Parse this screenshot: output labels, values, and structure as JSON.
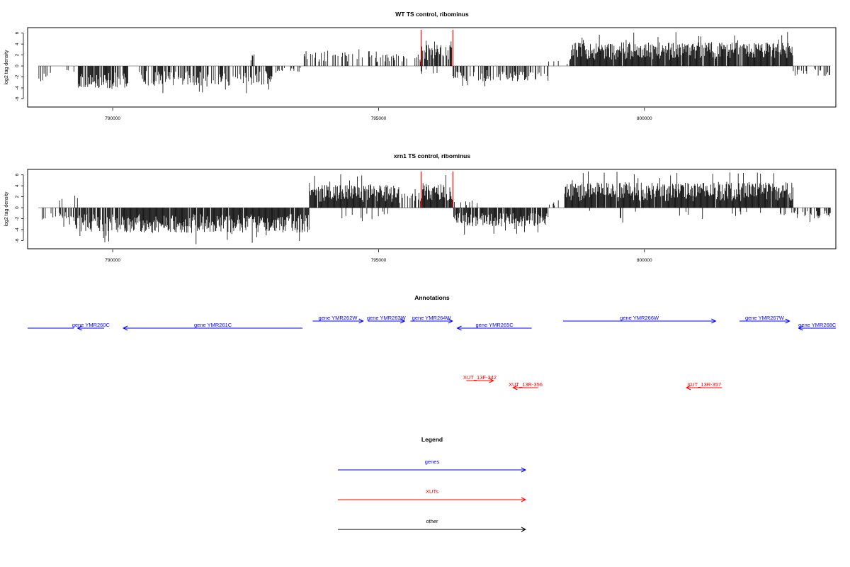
{
  "chart_data": [
    {
      "type": "bar",
      "title": "WT TS control, ribominus",
      "ylabel": "log2 tag density",
      "xlim": [
        788400,
        803600
      ],
      "ylim": [
        -7.5,
        7.0
      ],
      "xticks": [
        790000,
        795000,
        800000
      ],
      "yticks": [
        -6,
        -4,
        -2,
        0,
        2,
        4,
        6
      ],
      "highlight_color": "#ff0000",
      "highlights": [
        795800,
        796400
      ],
      "baseline": [
        788600,
        803500
      ],
      "segments": [
        {
          "from": 788600,
          "to": 788850,
          "sign": -1,
          "amp": 3.0,
          "density": 0.35
        },
        {
          "from": 788850,
          "to": 789350,
          "sign": -1,
          "amp": 1.5,
          "density": 0.05
        },
        {
          "from": 789350,
          "to": 790300,
          "sign": -1,
          "amp": 4.2,
          "density": 0.75
        },
        {
          "from": 790500,
          "to": 793000,
          "sign": -1,
          "amp": 3.6,
          "density": 0.6
        },
        {
          "from": 793000,
          "to": 793650,
          "sign": -1,
          "amp": 1.2,
          "density": 0.15
        },
        {
          "from": 792600,
          "to": 792700,
          "sign": 1,
          "amp": 2.5,
          "density": 0.3
        },
        {
          "from": 793600,
          "to": 795000,
          "sign": 1,
          "amp": 2.8,
          "density": 0.4
        },
        {
          "from": 795000,
          "to": 795800,
          "sign": 1,
          "amp": 2.2,
          "density": 0.3
        },
        {
          "from": 795800,
          "to": 796400,
          "sign": 1,
          "amp": 4.0,
          "density": 0.75
        },
        {
          "from": 795800,
          "to": 796400,
          "sign": -1,
          "amp": 1.5,
          "density": 0.05
        },
        {
          "from": 796400,
          "to": 798200,
          "sign": -1,
          "amp": 2.8,
          "density": 0.45
        },
        {
          "from": 798200,
          "to": 798600,
          "sign": 1,
          "amp": 1.0,
          "density": 0.08
        },
        {
          "from": 798600,
          "to": 802800,
          "sign": 1,
          "amp": 4.3,
          "density": 0.95
        },
        {
          "from": 802800,
          "to": 803500,
          "sign": -1,
          "amp": 1.8,
          "density": 0.3
        }
      ]
    },
    {
      "type": "bar",
      "title": "xrn1 TS control, ribominus",
      "ylabel": "log2 tag density",
      "xlim": [
        788400,
        803600
      ],
      "ylim": [
        -7.5,
        7.0
      ],
      "xticks": [
        790000,
        795000,
        800000
      ],
      "yticks": [
        -6,
        -4,
        -2,
        0,
        2,
        4,
        6
      ],
      "highlight_color": "#ff0000",
      "highlights": [
        795800,
        796400
      ],
      "baseline": [
        788600,
        803500
      ],
      "segments": [
        {
          "from": 788600,
          "to": 789300,
          "sign": -1,
          "amp": 2.5,
          "density": 0.35
        },
        {
          "from": 789000,
          "to": 789350,
          "sign": 1,
          "amp": 2.2,
          "density": 0.2
        },
        {
          "from": 789300,
          "to": 790200,
          "sign": -1,
          "amp": 4.5,
          "density": 0.8
        },
        {
          "from": 790200,
          "to": 793700,
          "sign": -1,
          "amp": 4.6,
          "density": 0.95
        },
        {
          "from": 793700,
          "to": 795400,
          "sign": 1,
          "amp": 4.2,
          "density": 0.95
        },
        {
          "from": 794300,
          "to": 795200,
          "sign": -1,
          "amp": 2.0,
          "density": 0.15
        },
        {
          "from": 795400,
          "to": 795800,
          "sign": 1,
          "amp": 3.0,
          "density": 0.5
        },
        {
          "from": 795800,
          "to": 796400,
          "sign": 1,
          "amp": 4.5,
          "density": 0.95
        },
        {
          "from": 796400,
          "to": 798200,
          "sign": -1,
          "amp": 3.4,
          "density": 0.9
        },
        {
          "from": 796400,
          "to": 797000,
          "sign": 1,
          "amp": 1.5,
          "density": 0.15
        },
        {
          "from": 798200,
          "to": 798500,
          "sign": 1,
          "amp": 1.0,
          "density": 0.1
        },
        {
          "from": 798500,
          "to": 802800,
          "sign": 1,
          "amp": 4.6,
          "density": 0.98
        },
        {
          "from": 798500,
          "to": 802800,
          "sign": -1,
          "amp": 2.0,
          "density": 0.07
        },
        {
          "from": 802800,
          "to": 803500,
          "sign": -1,
          "amp": 2.0,
          "density": 0.45
        }
      ]
    }
  ],
  "annotations": {
    "title": "Annotations",
    "blue": "#0000ff",
    "red": "#ff0000",
    "genes": [
      {
        "label": "",
        "from": 788400,
        "to": 789270,
        "strand": "none",
        "row": 1
      },
      {
        "label": "gene YMR260C",
        "from": 789340,
        "to": 789840,
        "strand": "-",
        "row": 1
      },
      {
        "label": "gene YMR261C",
        "from": 790200,
        "to": 793570,
        "strand": "-",
        "row": 1
      },
      {
        "label": "gene YMR262W",
        "from": 793760,
        "to": 794710,
        "strand": "+",
        "row": 0
      },
      {
        "label": "gene YMR263W",
        "from": 794800,
        "to": 795490,
        "strand": "+",
        "row": 0
      },
      {
        "label": "gene YMR264W",
        "from": 795600,
        "to": 796390,
        "strand": "+",
        "row": 0
      },
      {
        "label": "gene YMR265C",
        "from": 796480,
        "to": 797880,
        "strand": "-",
        "row": 1
      },
      {
        "label": "gene YMR266W",
        "from": 798470,
        "to": 801340,
        "strand": "+",
        "row": 0
      },
      {
        "label": "gene YMR267W",
        "from": 801790,
        "to": 802730,
        "strand": "+",
        "row": 0
      },
      {
        "label": "gene YMR268C",
        "from": 802900,
        "to": 803600,
        "strand": "-",
        "row": 1
      }
    ],
    "xuts": [
      {
        "label": "XUT_13F-342",
        "from": 796650,
        "to": 797160,
        "strand": "+",
        "row": 0
      },
      {
        "label": "XUT_13R-356",
        "from": 797530,
        "to": 798000,
        "strand": "-",
        "row": 1
      },
      {
        "label": "XUT_13R-357",
        "from": 800790,
        "to": 801460,
        "strand": "-",
        "row": 1
      }
    ]
  },
  "legend": {
    "title": "Legend",
    "items": [
      {
        "label": "genes",
        "color": "#0000ff"
      },
      {
        "label": "XUTs",
        "color": "#ff0000"
      },
      {
        "label": "other",
        "color": "#000000"
      }
    ]
  }
}
